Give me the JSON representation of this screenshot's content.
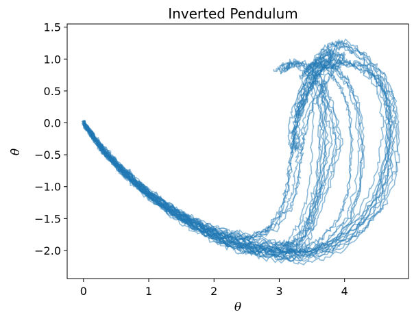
{
  "chart_data": {
    "type": "line",
    "title": "Inverted Pendulum",
    "xlabel": "θ",
    "ylabel": "θ̇",
    "xlim": [
      -0.25,
      4.98
    ],
    "ylim": [
      -2.44,
      1.55
    ],
    "x_ticks": [
      0,
      1,
      2,
      3,
      4
    ],
    "x_tick_labels": [
      "0",
      "1",
      "2",
      "3",
      "4"
    ],
    "y_ticks": [
      1.5,
      1.0,
      0.5,
      0.0,
      -0.5,
      -1.0,
      -1.5,
      -2.0
    ],
    "y_tick_labels": [
      "1.5",
      "1.0",
      "0.5",
      "0.0",
      "−0.5",
      "−1.0",
      "−1.5",
      "−2.0"
    ],
    "grid": false,
    "series_color": "#1f77b4",
    "series_alpha": 0.5,
    "representative_trajectories": [
      {
        "x": [
          0.0,
          0.3,
          0.6,
          1.0,
          1.4,
          1.8,
          2.2,
          2.6,
          3.0,
          3.2,
          3.35,
          3.5,
          3.7,
          3.85,
          3.75,
          3.6,
          3.45,
          3.25,
          3.1,
          3.0
        ],
        "y": [
          0.0,
          -0.45,
          -0.75,
          -1.1,
          -1.38,
          -1.6,
          -1.75,
          -1.85,
          -1.92,
          -1.95,
          -1.85,
          -1.4,
          -0.9,
          -0.3,
          0.2,
          0.6,
          0.85,
          0.95,
          0.9,
          0.8
        ]
      },
      {
        "x": [
          0.0,
          0.3,
          0.6,
          1.0,
          1.4,
          1.8,
          2.2,
          2.6,
          3.0,
          3.4,
          3.8,
          4.2,
          4.45,
          4.6,
          4.65,
          4.6,
          4.45,
          4.2,
          3.9,
          3.6,
          3.4,
          3.25,
          3.2,
          3.2,
          3.25
        ],
        "y": [
          0.0,
          -0.4,
          -0.72,
          -1.1,
          -1.4,
          -1.65,
          -1.85,
          -1.98,
          -2.06,
          -2.05,
          -1.9,
          -1.55,
          -1.1,
          -0.55,
          0.0,
          0.4,
          0.7,
          0.9,
          0.98,
          0.85,
          0.55,
          0.2,
          -0.1,
          -0.3,
          -0.45
        ]
      },
      {
        "x": [
          0.0,
          0.3,
          0.6,
          1.0,
          1.4,
          1.8,
          2.2,
          2.6,
          3.0,
          3.4,
          3.8,
          4.2,
          4.55,
          4.72,
          4.75,
          4.7,
          4.55,
          4.3,
          4.0,
          3.8,
          3.6,
          3.45,
          3.35,
          3.3
        ],
        "y": [
          0.0,
          -0.42,
          -0.75,
          -1.12,
          -1.45,
          -1.7,
          -1.9,
          -2.02,
          -2.1,
          -2.12,
          -2.02,
          -1.75,
          -1.3,
          -0.75,
          -0.1,
          0.35,
          0.75,
          1.05,
          1.25,
          1.2,
          1.0,
          0.7,
          0.4,
          0.1
        ]
      },
      {
        "x": [
          0.0,
          0.3,
          0.6,
          1.0,
          1.4,
          1.8,
          2.2,
          2.6,
          2.9,
          3.1,
          3.2,
          3.25,
          3.3,
          3.4,
          3.6,
          3.8,
          3.9,
          3.85,
          3.7,
          3.55,
          3.4
        ],
        "y": [
          0.0,
          -0.45,
          -0.78,
          -1.15,
          -1.42,
          -1.62,
          -1.78,
          -1.8,
          -1.65,
          -1.35,
          -1.0,
          -0.6,
          -0.2,
          0.2,
          0.6,
          0.9,
          1.05,
          1.1,
          1.0,
          0.85,
          0.7
        ]
      },
      {
        "x": [
          0.0,
          0.3,
          0.6,
          1.0,
          1.4,
          1.8,
          2.2,
          2.6,
          3.0,
          3.4,
          3.7,
          4.0,
          4.15,
          4.2,
          4.15,
          4.0,
          3.8,
          3.6,
          3.45
        ],
        "y": [
          0.0,
          -0.44,
          -0.76,
          -1.13,
          -1.43,
          -1.67,
          -1.86,
          -1.98,
          -2.05,
          -2.02,
          -1.85,
          -1.5,
          -1.0,
          -0.4,
          0.2,
          0.6,
          0.85,
          0.95,
          0.85
        ]
      },
      {
        "x": [
          0.0,
          0.3,
          0.6,
          1.0,
          1.4,
          1.8,
          2.2,
          2.6,
          2.95,
          3.2,
          3.4,
          3.55,
          3.6,
          3.62,
          3.6
        ],
        "y": [
          0.0,
          -0.43,
          -0.77,
          -1.14,
          -1.44,
          -1.68,
          -1.87,
          -1.97,
          -2.0,
          -1.9,
          -1.6,
          -1.1,
          -0.5,
          0.2,
          0.7
        ]
      }
    ]
  }
}
